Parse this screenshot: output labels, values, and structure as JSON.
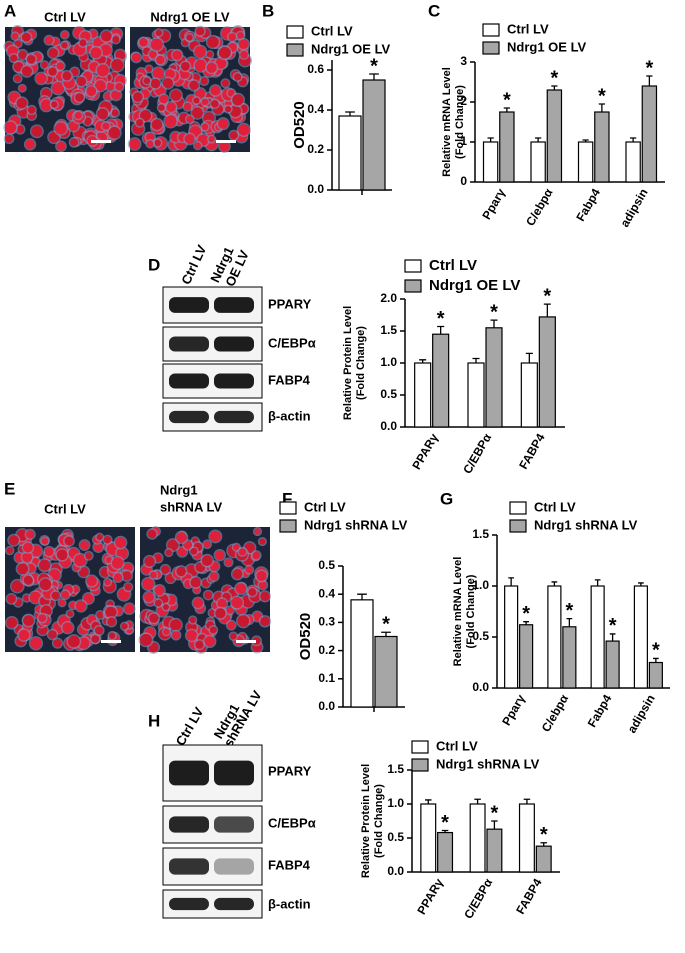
{
  "panels": [
    {
      "letter": "A",
      "image_labels": [
        "Ctrl LV",
        "Ndrg1 OE LV"
      ]
    },
    {
      "letter": "B"
    },
    {
      "letter": "C"
    },
    {
      "letter": "D",
      "lane_labels": [
        [
          "Ctrl  LV"
        ],
        [
          "Ndrg1",
          "OE LV"
        ]
      ],
      "blot_labels": [
        "PPARY",
        "C/EBPα",
        "FABP4",
        "β-actin"
      ]
    },
    {
      "letter": "E",
      "image_labels": [
        [
          "Ctrl LV"
        ],
        [
          "Ndrg1",
          "shRNA LV"
        ]
      ]
    },
    {
      "letter": "F"
    },
    {
      "letter": "G"
    },
    {
      "letter": "H",
      "lane_labels": [
        [
          "Ctrl LV"
        ],
        [
          "Ndrg1",
          "shRNA LV"
        ]
      ],
      "blot_labels": [
        "PPARY",
        "C/EBPα",
        "FABP4",
        "β-actin"
      ]
    }
  ],
  "chart_data": [
    {
      "type": "bar",
      "ylabel": [
        "OD520"
      ],
      "categories": [
        null
      ],
      "ylim": [
        0,
        0.65
      ],
      "yticks": [
        {
          "value": 0,
          "label": "0.0"
        },
        0.2,
        0.4,
        0.6
      ],
      "series": [
        {
          "name": "Ctrl LV",
          "color": "#ffffff",
          "values": [
            0.37
          ],
          "errors": [
            0.02
          ]
        },
        {
          "name": "Ndrg1 OE LV",
          "color": "#a6a6a6",
          "values": [
            0.55
          ],
          "errors": [
            0.03
          ],
          "significance": [
            "*"
          ]
        }
      ]
    },
    {
      "type": "bar",
      "ylabel": [
        "Relative mRNA Level",
        "(Fold Change)"
      ],
      "categories": [
        "Pparγ",
        "C/ebpα",
        "Fabp4",
        "adipsin"
      ],
      "ylim": [
        0,
        3
      ],
      "yticks": [
        0,
        1,
        2,
        3
      ],
      "series": [
        {
          "name": "Ctrl LV",
          "color": "#ffffff",
          "values": [
            1.0,
            1.0,
            1.0,
            1.0
          ],
          "errors": [
            0.1,
            0.1,
            0.05,
            0.1
          ]
        },
        {
          "name": "Ndrg1 OE LV",
          "color": "#a6a6a6",
          "values": [
            1.75,
            2.3,
            1.75,
            2.4
          ],
          "errors": [
            0.1,
            0.1,
            0.2,
            0.25
          ],
          "significance": [
            "*",
            "*",
            "*",
            "*"
          ]
        }
      ]
    },
    {
      "type": "bar",
      "ylabel": [
        "Relative Protein Level",
        "(Fold Change)"
      ],
      "categories": [
        "PPARγ",
        "C/EBPα",
        "FABP4"
      ],
      "ylim": [
        0,
        2
      ],
      "yticks": [
        {
          "value": 0,
          "label": "0.0"
        },
        0.5,
        {
          "value": 1,
          "label": "1.0"
        },
        1.5,
        {
          "value": 2,
          "label": "2.0"
        }
      ],
      "series": [
        {
          "name": "Ctrl LV",
          "color": "#ffffff",
          "values": [
            1.0,
            1.0,
            1.0
          ],
          "errors": [
            0.05,
            0.07,
            0.15
          ]
        },
        {
          "name": "Ndrg1 OE LV",
          "color": "#a6a6a6",
          "values": [
            1.45,
            1.55,
            1.72
          ],
          "errors": [
            0.12,
            0.12,
            0.2
          ],
          "significance": [
            "*",
            "*",
            "*"
          ]
        }
      ]
    },
    {
      "type": "bar",
      "ylabel": [
        "OD520"
      ],
      "categories": [
        null
      ],
      "ylim": [
        0,
        0.5
      ],
      "yticks": [
        {
          "value": 0,
          "label": "0.0"
        },
        0.1,
        0.2,
        0.3,
        0.4,
        0.5
      ],
      "series": [
        {
          "name": "Ctrl LV",
          "color": "#ffffff",
          "values": [
            0.38
          ],
          "errors": [
            0.02
          ]
        },
        {
          "name": "Ndrg1 shRNA LV",
          "color": "#a6a6a6",
          "values": [
            0.25
          ],
          "errors": [
            0.015
          ],
          "significance": [
            "*"
          ]
        }
      ]
    },
    {
      "type": "bar",
      "ylabel": [
        "Relative mRNA Level",
        "(Fold Change)"
      ],
      "categories": [
        "Pparγ",
        "C/ebpα",
        "Fabp4",
        "adipsin"
      ],
      "ylim": [
        0,
        1.5
      ],
      "yticks": [
        {
          "value": 0,
          "label": "0.0"
        },
        0.5,
        {
          "value": 1,
          "label": "1.0"
        },
        1.5
      ],
      "series": [
        {
          "name": "Ctrl  LV",
          "color": "#ffffff",
          "values": [
            1.0,
            1.0,
            1.0,
            1.0
          ],
          "errors": [
            0.08,
            0.04,
            0.06,
            0.03
          ]
        },
        {
          "name": "Ndrg1 shRNA LV",
          "color": "#a6a6a6",
          "values": [
            0.62,
            0.6,
            0.46,
            0.25
          ],
          "errors": [
            0.03,
            0.08,
            0.07,
            0.04
          ],
          "significance": [
            "*",
            "*",
            "*",
            "*"
          ]
        }
      ]
    },
    {
      "type": "bar",
      "ylabel": [
        "Relative Protein Level",
        "(Fold Change)"
      ],
      "categories": [
        "PPARγ",
        "C/EBPα",
        "FABP4"
      ],
      "ylim": [
        0,
        1.5
      ],
      "yticks": [
        {
          "value": 0,
          "label": "0.0"
        },
        0.5,
        {
          "value": 1,
          "label": "1.0"
        },
        1.5
      ],
      "series": [
        {
          "name": "Ctrl LV",
          "color": "#ffffff",
          "values": [
            1.0,
            1.0,
            1.0
          ],
          "errors": [
            0.06,
            0.07,
            0.07
          ]
        },
        {
          "name": "Ndrg1 shRNA LV",
          "color": "#a6a6a6",
          "values": [
            0.58,
            0.63,
            0.38
          ],
          "errors": [
            0.03,
            0.12,
            0.05
          ],
          "significance": [
            "*",
            "*",
            "*"
          ]
        }
      ]
    }
  ]
}
